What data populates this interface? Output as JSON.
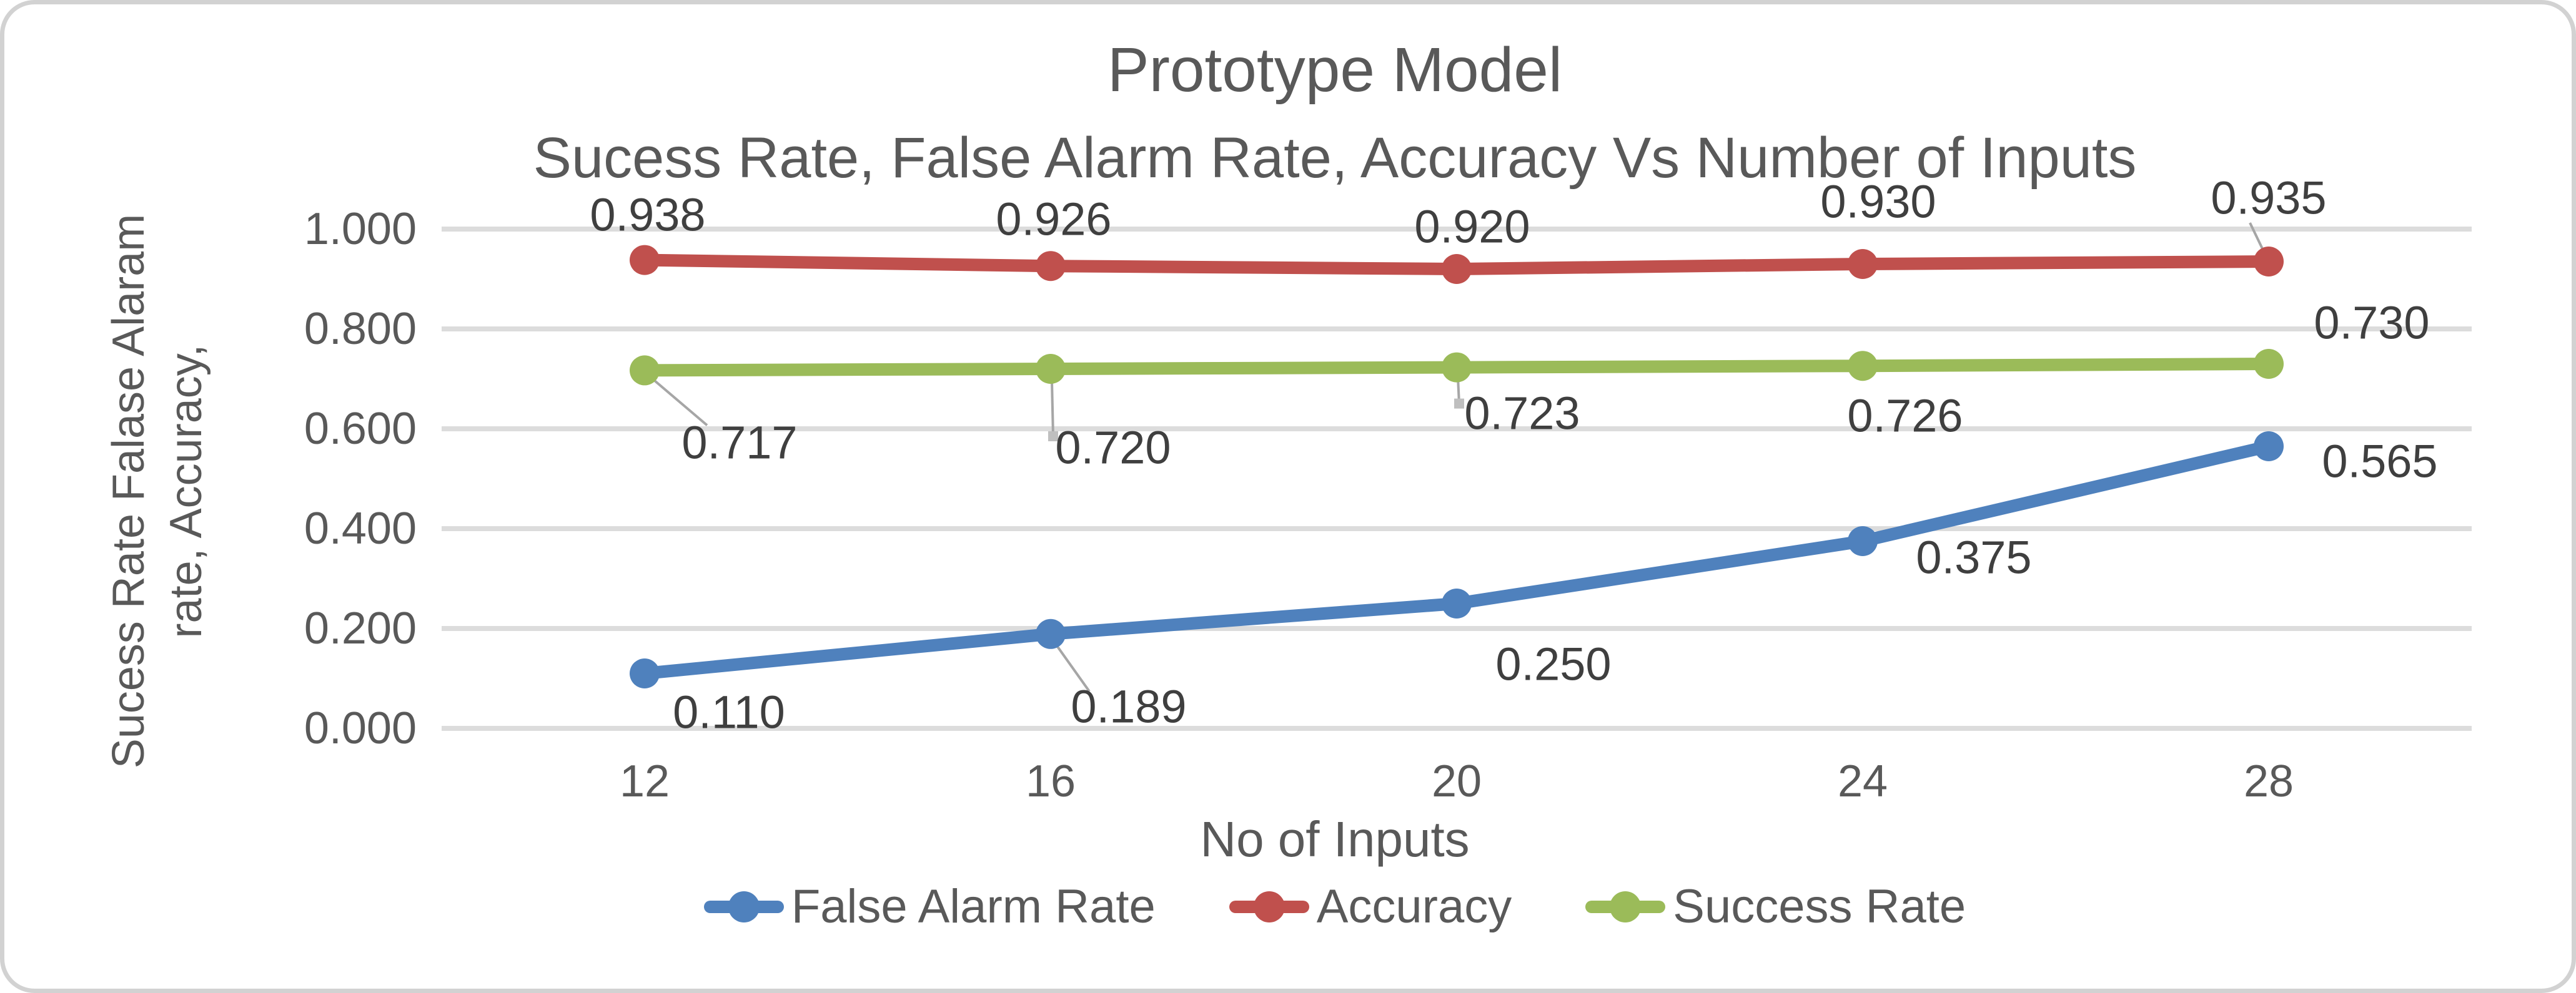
{
  "chart_data": {
    "type": "line",
    "title": "Prototype Model",
    "subtitle": "Sucess Rate, False Alarm Rate, Accuracy Vs Number of Inputs",
    "xlabel": "No of Inputs",
    "ylabel_line1": "Sucess Rate Falase Alaram",
    "ylabel_line2": "rate, Accuracy,",
    "x": [
      12,
      16,
      20,
      24,
      28
    ],
    "x_tick_labels": [
      "12",
      "16",
      "20",
      "24",
      "28"
    ],
    "y_tick_values": [
      1.0,
      0.8,
      0.6,
      0.4,
      0.2,
      0.0
    ],
    "y_tick_labels": [
      "1.000",
      "0.800",
      "0.600",
      "0.400",
      "0.200",
      "0.000"
    ],
    "ylim": [
      0.0,
      1.0
    ],
    "grid": "horizontal",
    "legend_position": "bottom",
    "colors": {
      "gridline": "#dcdcdc",
      "leader": "#a6a6a6",
      "leader_square": "#bfbfbf",
      "axis_text": "#595959",
      "label_text": "#3f3f3f"
    },
    "series": [
      {
        "name": "False Alarm Rate",
        "color": "#4F81BD",
        "values": [
          0.11,
          0.189,
          0.25,
          0.375,
          0.565
        ],
        "point_labels": [
          "0.110",
          "0.189",
          "0.250",
          "0.375",
          "0.565"
        ],
        "label_offsets": [
          [
            135,
            62
          ],
          [
            125,
            116
          ],
          [
            155,
            97
          ],
          [
            178,
            26
          ],
          [
            178,
            24
          ]
        ],
        "leaders": [
          null,
          [
            8,
            16,
            62,
            92,
            false
          ],
          null,
          null,
          null
        ]
      },
      {
        "name": "Accuracy",
        "color": "#C0504D",
        "values": [
          0.938,
          0.926,
          0.92,
          0.93,
          0.935
        ],
        "point_labels": [
          "0.938",
          "0.926",
          "0.920",
          "0.930",
          "0.935"
        ],
        "label_offsets": [
          [
            5,
            -73
          ],
          [
            5,
            -75
          ],
          [
            25,
            -68
          ],
          [
            25,
            -100
          ],
          [
            0,
            -102
          ]
        ],
        "leaders": [
          null,
          null,
          null,
          null,
          [
            -30,
            -62,
            -4,
            -8,
            false
          ]
        ]
      },
      {
        "name": "Success Rate",
        "color": "#9BBB59",
        "values": [
          0.717,
          0.72,
          0.723,
          0.726,
          0.73
        ],
        "point_labels": [
          "0.717",
          "0.720",
          "0.723",
          "0.726",
          "0.730"
        ],
        "label_offsets": [
          [
            152,
            116
          ],
          [
            100,
            126
          ],
          [
            105,
            73
          ],
          [
            68,
            80
          ],
          [
            165,
            -66
          ]
        ],
        "leaders": [
          [
            6,
            8,
            100,
            88,
            false
          ],
          [
            2,
            20,
            4,
            108,
            true
          ],
          [
            2,
            16,
            4,
            58,
            true
          ],
          null,
          null
        ]
      }
    ]
  }
}
